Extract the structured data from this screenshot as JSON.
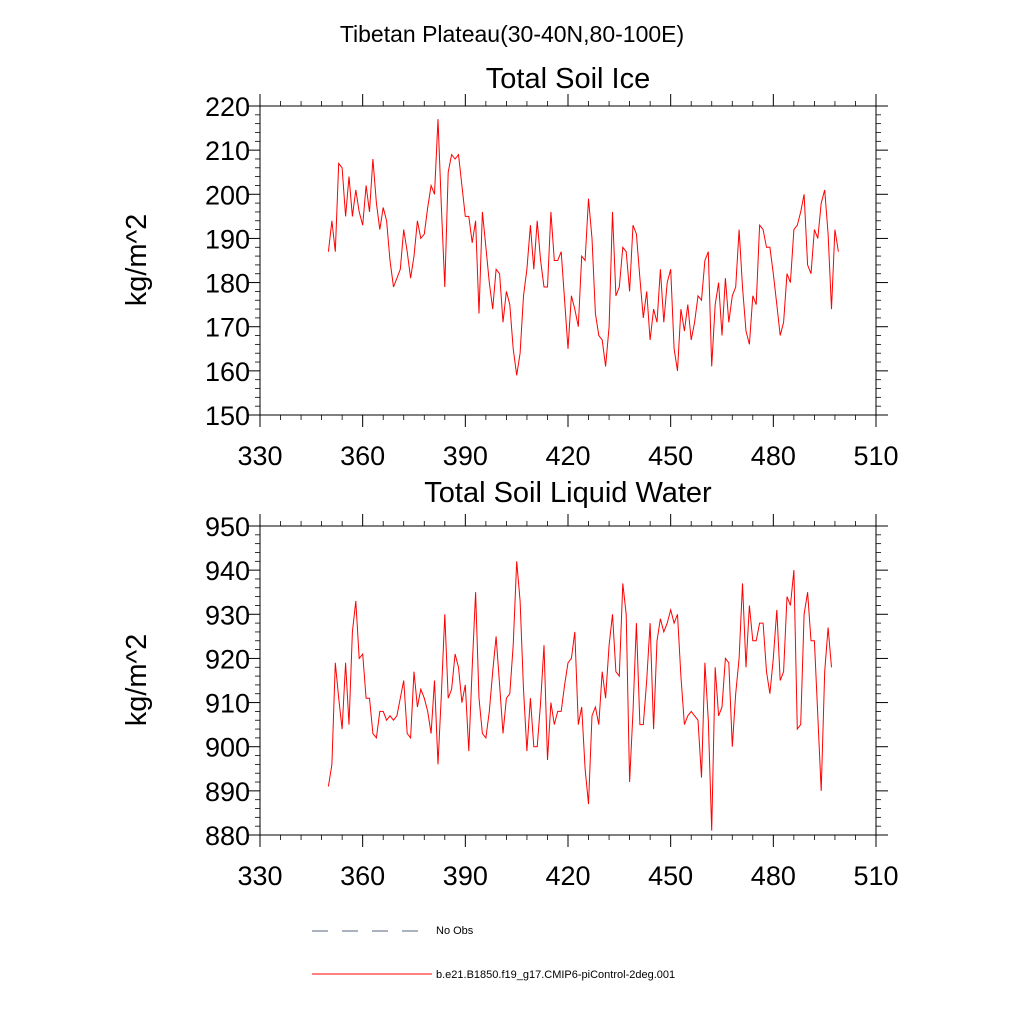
{
  "suptitle": "Tibetan Plateau(30-40N,80-100E)",
  "colors": {
    "model_line": "#ff0000",
    "obs_line": "#556680",
    "axis": "#000000"
  },
  "legend": [
    {
      "label": "No Obs",
      "style": "dashed",
      "color": "#556680"
    },
    {
      "label": "b.e21.B1850.f19_g17.CMIP6-piControl-2deg.001",
      "style": "solid",
      "color": "#ff0000"
    }
  ],
  "chart_data": [
    {
      "type": "line",
      "title": "Total Soil Ice",
      "xlabel": "",
      "ylabel": "kg/m^2",
      "xlim": [
        330,
        510
      ],
      "ylim": [
        150,
        220
      ],
      "xticks": [
        330,
        360,
        390,
        420,
        450,
        480,
        510
      ],
      "yticks": [
        150,
        160,
        170,
        180,
        190,
        200,
        210,
        220
      ],
      "grid": false,
      "series": [
        {
          "name": "b.e21.B1850.f19_g17.CMIP6-piControl-2deg.001",
          "x_start": 350,
          "x_step": 1,
          "values": [
            187,
            194,
            187,
            207,
            206,
            195,
            204,
            195,
            201,
            196,
            193,
            202,
            196,
            208,
            198,
            192,
            197,
            194,
            185,
            179,
            181,
            183,
            192,
            187,
            181,
            186,
            194,
            190,
            191,
            197,
            202,
            200,
            217,
            197,
            179,
            205,
            209,
            208,
            209,
            202,
            195,
            195,
            189,
            194,
            173,
            196,
            188,
            180,
            174,
            183,
            182,
            171,
            178,
            175,
            165,
            159,
            164,
            177,
            183,
            193,
            183,
            194,
            185,
            179,
            179,
            196,
            185,
            185,
            187,
            176,
            165,
            177,
            174,
            170,
            186,
            185,
            199,
            190,
            173,
            168,
            167,
            161,
            170,
            196,
            177,
            179,
            188,
            187,
            178,
            193,
            191,
            181,
            172,
            178,
            167,
            174,
            171,
            183,
            171,
            180,
            183,
            165,
            160,
            174,
            169,
            175,
            167,
            171,
            177,
            176,
            185,
            187,
            161,
            175,
            180,
            168,
            181,
            171,
            177,
            179,
            192,
            179,
            169,
            166,
            177,
            175,
            193,
            192,
            188,
            188,
            182,
            175,
            168,
            171,
            182,
            180,
            192,
            193,
            196,
            200,
            184,
            182,
            192,
            190,
            198,
            201,
            191,
            174,
            192,
            187
          ]
        },
        {
          "name": "No Obs",
          "values": []
        }
      ]
    },
    {
      "type": "line",
      "title": "Total Soil Liquid Water",
      "xlabel": "",
      "ylabel": "kg/m^2",
      "xlim": [
        330,
        510
      ],
      "ylim": [
        880,
        950
      ],
      "xticks": [
        330,
        360,
        390,
        420,
        450,
        480,
        510
      ],
      "yticks": [
        880,
        890,
        900,
        910,
        920,
        930,
        940,
        950
      ],
      "grid": false,
      "series": [
        {
          "name": "b.e21.B1850.f19_g17.CMIP6-piControl-2deg.001",
          "x_start": 350,
          "x_step": 1,
          "values": [
            891,
            896,
            919,
            911,
            904,
            919,
            905,
            926,
            933,
            920,
            921,
            911,
            911,
            903,
            902,
            908,
            908,
            906,
            907,
            906,
            907,
            911,
            915,
            903,
            902,
            917,
            909,
            913,
            911,
            908,
            903,
            915,
            896,
            912,
            930,
            911,
            913,
            921,
            918,
            910,
            914,
            899,
            918,
            935,
            911,
            903,
            902,
            908,
            917,
            925,
            914,
            903,
            911,
            912,
            923,
            942,
            933,
            913,
            899,
            911,
            900,
            900,
            910,
            923,
            897,
            910,
            905,
            908,
            908,
            914,
            919,
            920,
            926,
            905,
            909,
            895,
            887,
            907,
            909,
            905,
            917,
            911,
            923,
            930,
            917,
            916,
            937,
            930,
            892,
            908,
            928,
            905,
            905,
            915,
            928,
            904,
            924,
            929,
            926,
            928,
            931,
            928,
            930,
            916,
            905,
            907,
            908,
            907,
            906,
            893,
            919,
            906,
            881,
            918,
            907,
            909,
            920,
            919,
            900,
            912,
            920,
            937,
            918,
            932,
            924,
            924,
            928,
            928,
            917,
            912,
            920,
            931,
            915,
            917,
            934,
            932,
            940,
            904,
            905,
            930,
            935,
            924,
            924,
            907,
            890,
            917,
            927,
            918
          ]
        },
        {
          "name": "No Obs",
          "values": []
        }
      ]
    }
  ]
}
